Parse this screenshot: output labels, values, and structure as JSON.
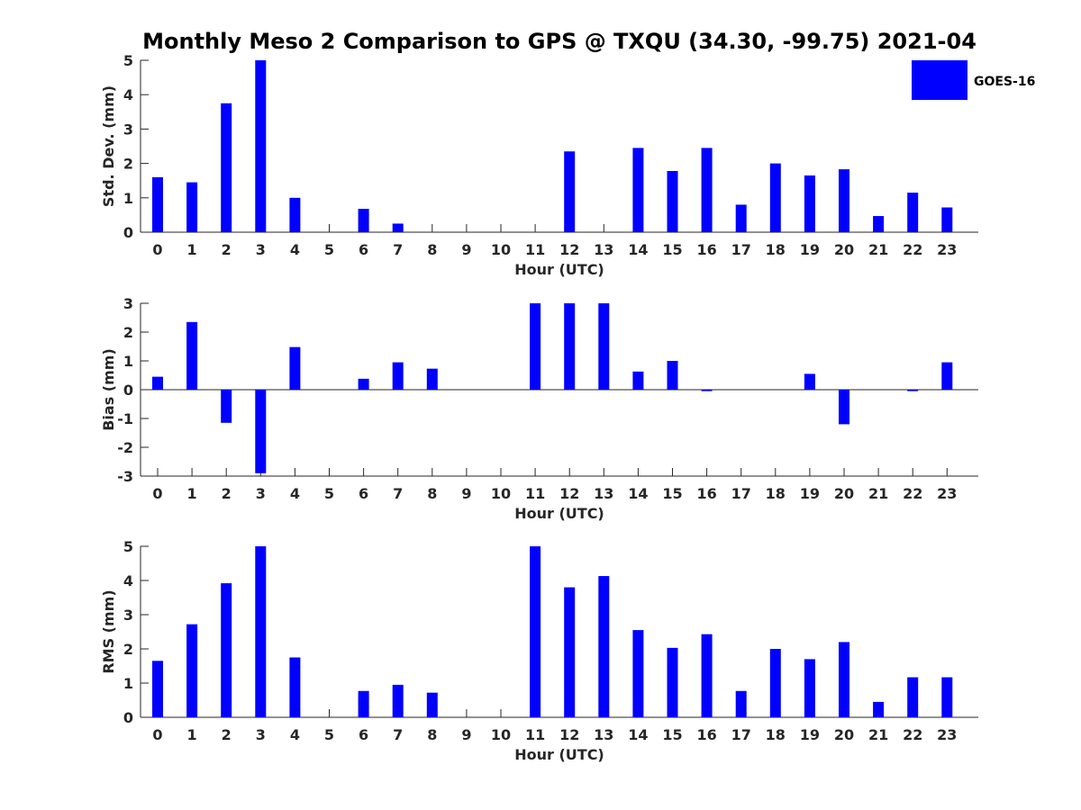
{
  "title": "Monthly Meso 2 Comparison to GPS @ TXQU (34.30, -99.75) 2021-04",
  "legend": {
    "label": "GOES-16",
    "position": "top-right"
  },
  "colors": {
    "bar": "#0000ff",
    "axis": "#262626",
    "background": "#ffffff"
  },
  "chart_data": [
    {
      "type": "bar",
      "ylabel": "Std. Dev. (mm)",
      "xlabel": "Hour (UTC)",
      "ylim": [
        0,
        5
      ],
      "yticks": [
        "0",
        "1",
        "2",
        "3",
        "4",
        "5"
      ],
      "categories": [
        "0",
        "1",
        "2",
        "3",
        "4",
        "5",
        "6",
        "7",
        "8",
        "9",
        "10",
        "11",
        "12",
        "13",
        "14",
        "15",
        "16",
        "17",
        "18",
        "19",
        "20",
        "21",
        "22",
        "23"
      ],
      "series": [
        {
          "name": "GOES-16",
          "values": [
            1.6,
            1.45,
            3.75,
            5.0,
            1.0,
            0,
            0.68,
            0.25,
            0,
            0,
            0,
            0,
            2.35,
            0,
            2.45,
            1.78,
            2.45,
            0.8,
            2.0,
            1.65,
            1.83,
            0.47,
            1.15,
            0.72
          ]
        }
      ],
      "grid": false
    },
    {
      "type": "bar",
      "ylabel": "Bias (mm)",
      "xlabel": "Hour (UTC)",
      "ylim": [
        -3,
        3
      ],
      "yticks": [
        "-3",
        "-2",
        "-1",
        "0",
        "1",
        "2",
        "3"
      ],
      "categories": [
        "0",
        "1",
        "2",
        "3",
        "4",
        "5",
        "6",
        "7",
        "8",
        "9",
        "10",
        "11",
        "12",
        "13",
        "14",
        "15",
        "16",
        "17",
        "18",
        "19",
        "20",
        "21",
        "22",
        "23"
      ],
      "series": [
        {
          "name": "GOES-16",
          "values": [
            0.45,
            2.35,
            -1.15,
            -2.9,
            1.48,
            0,
            0.38,
            0.95,
            0.73,
            0,
            0,
            3.0,
            3.0,
            3.0,
            0.63,
            1.0,
            -0.05,
            0,
            0,
            0.55,
            -1.2,
            0,
            -0.05,
            0.95
          ]
        }
      ],
      "grid": false
    },
    {
      "type": "bar",
      "ylabel": "RMS (mm)",
      "xlabel": "Hour (UTC)",
      "ylim": [
        0,
        5
      ],
      "yticks": [
        "0",
        "1",
        "2",
        "3",
        "4",
        "5"
      ],
      "categories": [
        "0",
        "1",
        "2",
        "3",
        "4",
        "5",
        "6",
        "7",
        "8",
        "9",
        "10",
        "11",
        "12",
        "13",
        "14",
        "15",
        "16",
        "17",
        "18",
        "19",
        "20",
        "21",
        "22",
        "23"
      ],
      "series": [
        {
          "name": "GOES-16",
          "values": [
            1.65,
            2.72,
            3.92,
            5.0,
            1.75,
            0,
            0.77,
            0.95,
            0.72,
            0,
            0,
            5.0,
            3.8,
            4.13,
            2.55,
            2.03,
            2.43,
            0.77,
            2.0,
            1.7,
            2.2,
            0.45,
            1.17,
            1.17
          ]
        }
      ],
      "grid": false
    }
  ]
}
